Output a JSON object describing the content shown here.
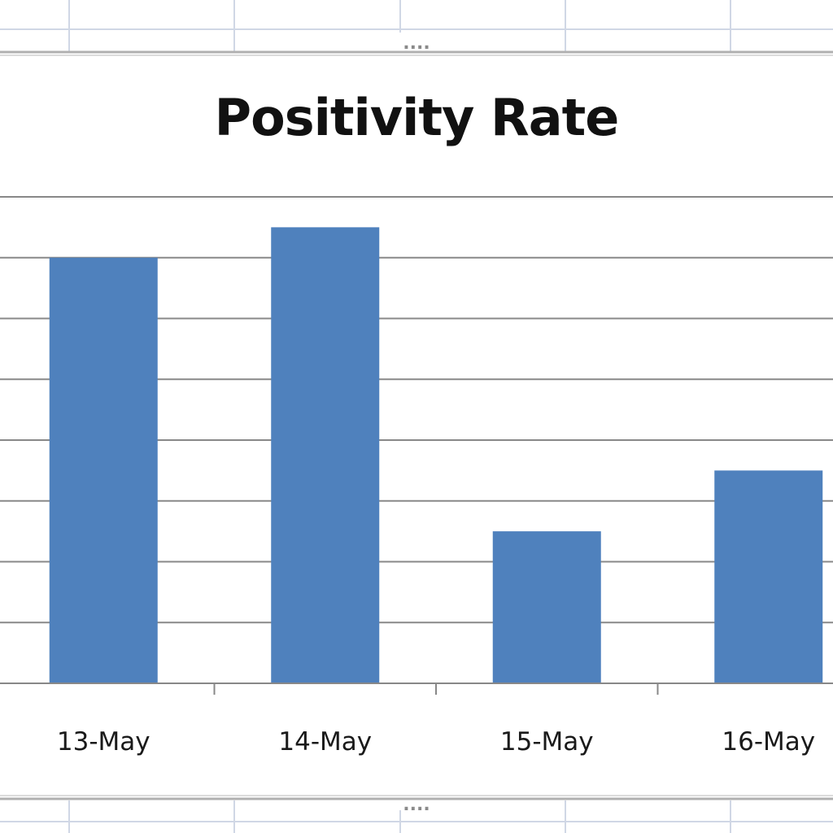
{
  "colors": {
    "bar": "#4f81bd",
    "gridline": "#888888",
    "axis": "#888888",
    "sheet_grid": "#d0d7e5",
    "chart_border": "#b0b0b0",
    "background": "#ffffff"
  },
  "icons": {
    "top_handle": "resize-handle-icon",
    "bottom_handle": "resize-handle-icon"
  },
  "handles": {
    "top": "....",
    "bottom": "...."
  },
  "chart_data": {
    "type": "bar",
    "title": "Positivity Rate",
    "categories": [
      "13-May",
      "14-May",
      "15-May",
      "16-May"
    ],
    "values": [
      7.0,
      7.5,
      2.5,
      3.5
    ],
    "ylim": [
      0,
      8
    ],
    "grid": true,
    "legend": "none",
    "xlabel": "",
    "ylabel": ""
  }
}
